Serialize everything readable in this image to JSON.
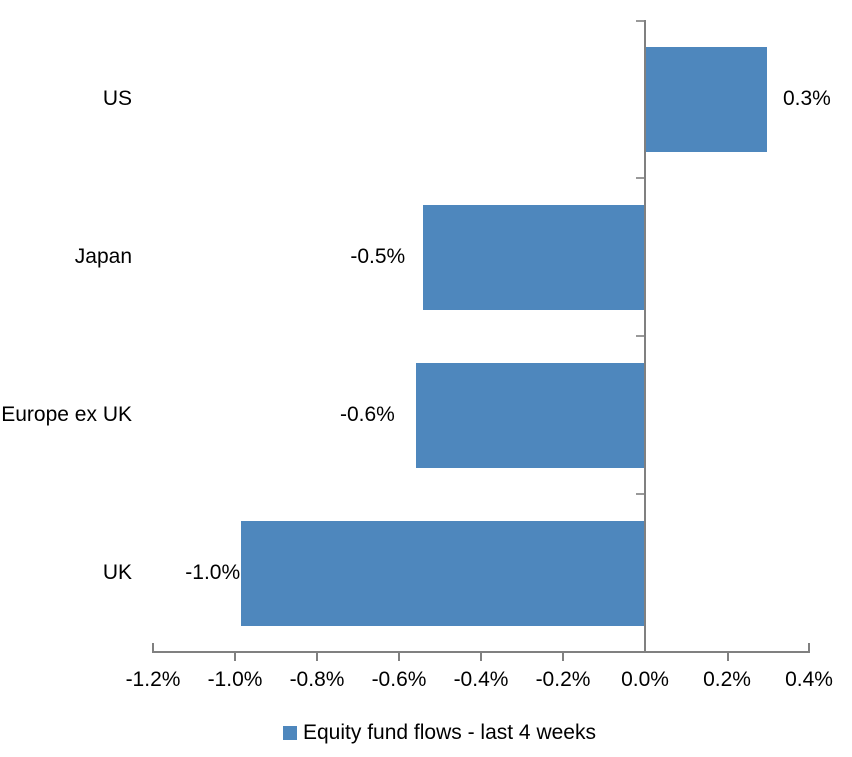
{
  "chart_data": {
    "type": "bar",
    "orientation": "horizontal",
    "title": "",
    "categories": [
      "US",
      "Japan",
      "Europe ex UK",
      "UK"
    ],
    "values": [
      0.3,
      -0.5,
      -0.6,
      -1.0
    ],
    "data_labels": [
      "0.3%",
      "-0.5%",
      "-0.6%",
      "-1.0%"
    ],
    "plot_values": [
      0.295,
      -0.541,
      -0.559,
      -0.985
    ],
    "unit": "percent",
    "xlabel": "",
    "ylabel": "",
    "xlim": [
      -1.2,
      0.4
    ],
    "x_tick_step": 0.2,
    "x_tick_labels": [
      "-1.2%",
      "-1.0%",
      "-0.8%",
      "-0.6%",
      "-0.4%",
      "-0.2%",
      "0.0%",
      "0.2%",
      "0.4%"
    ],
    "grid": false,
    "legend": {
      "position": "bottom",
      "label": "Equity fund flows - last 4 weeks"
    },
    "colors": {
      "bar": "#4E87BD",
      "axis": "#808080",
      "text": "#000000",
      "background": "#FFFFFF"
    }
  }
}
